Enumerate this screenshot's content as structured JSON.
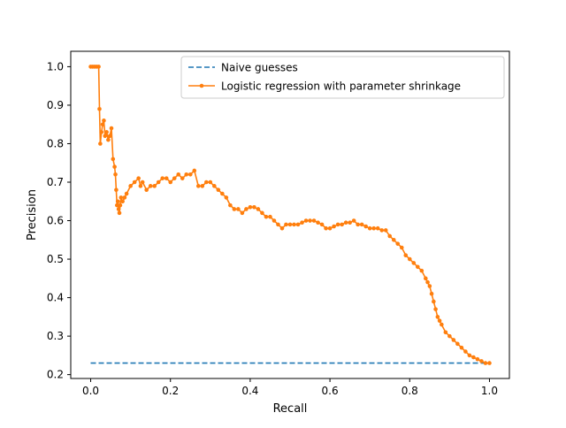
{
  "chart_data": {
    "type": "line",
    "title": "",
    "xlabel": "Recall",
    "ylabel": "Precision",
    "xlim": [
      -0.05,
      1.05
    ],
    "ylim": [
      0.19,
      1.04
    ],
    "xticks": [
      0.0,
      0.2,
      0.4,
      0.6,
      0.8,
      1.0
    ],
    "xtick_labels": [
      "0.0",
      "0.2",
      "0.4",
      "0.6",
      "0.8",
      "1.0"
    ],
    "yticks": [
      0.2,
      0.3,
      0.4,
      0.5,
      0.6,
      0.7,
      0.8,
      0.9,
      1.0
    ],
    "ytick_labels": [
      "0.2",
      "0.3",
      "0.4",
      "0.5",
      "0.6",
      "0.7",
      "0.8",
      "0.9",
      "1.0"
    ],
    "grid": false,
    "legend_position": "top-right",
    "series": [
      {
        "name": "Naive guesses",
        "style": "dashed",
        "marker": false,
        "color": "#1f77b4",
        "x": [
          0.0,
          1.0
        ],
        "y": [
          0.23,
          0.23
        ]
      },
      {
        "name": "Logistic regression with parameter shrinkage",
        "style": "solid",
        "marker": true,
        "color": "#ff7f0e",
        "x": [
          0.0,
          0.005,
          0.01,
          0.015,
          0.02,
          0.022,
          0.024,
          0.027,
          0.03,
          0.033,
          0.036,
          0.04,
          0.044,
          0.048,
          0.052,
          0.056,
          0.06,
          0.062,
          0.064,
          0.066,
          0.068,
          0.07,
          0.072,
          0.074,
          0.076,
          0.08,
          0.085,
          0.09,
          0.1,
          0.11,
          0.12,
          0.125,
          0.13,
          0.14,
          0.15,
          0.16,
          0.17,
          0.18,
          0.19,
          0.2,
          0.21,
          0.22,
          0.23,
          0.24,
          0.25,
          0.26,
          0.27,
          0.28,
          0.29,
          0.3,
          0.31,
          0.32,
          0.33,
          0.34,
          0.35,
          0.36,
          0.37,
          0.38,
          0.39,
          0.4,
          0.41,
          0.42,
          0.43,
          0.44,
          0.45,
          0.46,
          0.47,
          0.48,
          0.49,
          0.5,
          0.51,
          0.52,
          0.53,
          0.54,
          0.55,
          0.56,
          0.57,
          0.58,
          0.59,
          0.6,
          0.61,
          0.62,
          0.63,
          0.64,
          0.65,
          0.66,
          0.67,
          0.68,
          0.69,
          0.7,
          0.71,
          0.72,
          0.73,
          0.74,
          0.75,
          0.76,
          0.77,
          0.78,
          0.79,
          0.8,
          0.81,
          0.82,
          0.83,
          0.84,
          0.845,
          0.85,
          0.855,
          0.86,
          0.865,
          0.87,
          0.875,
          0.88,
          0.89,
          0.9,
          0.91,
          0.92,
          0.93,
          0.94,
          0.95,
          0.96,
          0.97,
          0.98,
          0.99,
          1.0
        ],
        "y": [
          1.0,
          1.0,
          1.0,
          1.0,
          1.0,
          0.89,
          0.8,
          0.83,
          0.85,
          0.86,
          0.82,
          0.83,
          0.81,
          0.82,
          0.84,
          0.76,
          0.74,
          0.72,
          0.68,
          0.64,
          0.65,
          0.63,
          0.62,
          0.64,
          0.66,
          0.65,
          0.66,
          0.67,
          0.69,
          0.7,
          0.71,
          0.69,
          0.7,
          0.68,
          0.69,
          0.69,
          0.7,
          0.71,
          0.71,
          0.7,
          0.71,
          0.72,
          0.71,
          0.72,
          0.72,
          0.73,
          0.69,
          0.69,
          0.7,
          0.7,
          0.69,
          0.68,
          0.67,
          0.66,
          0.64,
          0.63,
          0.63,
          0.62,
          0.63,
          0.635,
          0.635,
          0.63,
          0.62,
          0.61,
          0.61,
          0.6,
          0.59,
          0.58,
          0.59,
          0.59,
          0.59,
          0.59,
          0.595,
          0.6,
          0.6,
          0.6,
          0.595,
          0.59,
          0.58,
          0.58,
          0.585,
          0.59,
          0.59,
          0.595,
          0.595,
          0.6,
          0.59,
          0.59,
          0.585,
          0.58,
          0.58,
          0.58,
          0.575,
          0.575,
          0.56,
          0.55,
          0.54,
          0.53,
          0.51,
          0.5,
          0.49,
          0.48,
          0.47,
          0.45,
          0.44,
          0.43,
          0.41,
          0.39,
          0.37,
          0.35,
          0.34,
          0.33,
          0.31,
          0.3,
          0.29,
          0.28,
          0.27,
          0.26,
          0.25,
          0.245,
          0.24,
          0.235,
          0.23,
          0.23
        ]
      }
    ]
  }
}
